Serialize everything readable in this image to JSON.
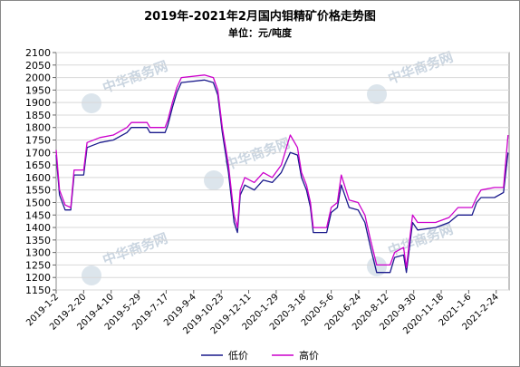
{
  "chart_data": {
    "type": "line",
    "title": "2019年-2021年2月国内钼精矿价格走势图",
    "subtitle": "单位：元/吨度",
    "watermark": "中华商务网",
    "x": [
      "2019-1-2",
      "2019-1-8",
      "2019-1-18",
      "2019-1-28",
      "2019-2-3",
      "2019-2-20",
      "2019-2-26",
      "2019-3-21",
      "2019-4-14",
      "2019-5-8",
      "2019-5-16",
      "2019-6-13",
      "2019-6-18",
      "2019-7-15",
      "2019-7-20",
      "2019-7-28",
      "2019-8-5",
      "2019-8-13",
      "2019-9-23",
      "2019-10-9",
      "2019-10-17",
      "2019-10-25",
      "2019-11-5",
      "2019-11-15",
      "2019-11-21",
      "2019-11-26",
      "2019-12-4",
      "2019-12-21",
      "2020-1-6",
      "2020-1-22",
      "2020-2-7",
      "2020-2-23",
      "2020-3-7",
      "2020-3-14",
      "2020-3-23",
      "2020-3-30",
      "2020-4-4",
      "2020-4-28",
      "2020-5-6",
      "2020-5-17",
      "2020-5-24",
      "2020-6-7",
      "2020-6-23",
      "2020-7-5",
      "2020-7-15",
      "2020-7-26",
      "2020-8-19",
      "2020-8-27",
      "2020-9-12",
      "2020-9-17",
      "2020-9-28",
      "2020-10-7",
      "2020-11-8",
      "2020-12-2",
      "2020-12-18",
      "2021-1-12",
      "2021-1-20",
      "2021-1-28",
      "2021-2-21",
      "2021-3-9",
      "2021-3-17"
    ],
    "xlim": [
      "2019-1-2",
      "2021-3-19"
    ],
    "xticks": [
      "2019-1-2",
      "2019-2-20",
      "2019-4-10",
      "2019-5-29",
      "2019-7-17",
      "2019-9-4",
      "2019-10-23",
      "2019-12-11",
      "2020-1-29",
      "2020-3-18",
      "2020-5-6",
      "2020-6-24",
      "2020-8-12",
      "2020-9-30",
      "2020-11-18",
      "2021-1-6",
      "2021-2-24"
    ],
    "ylim": [
      1150,
      2100
    ],
    "yticks": [
      1150,
      1200,
      1250,
      1300,
      1350,
      1400,
      1450,
      1500,
      1550,
      1600,
      1650,
      1700,
      1750,
      1800,
      1850,
      1900,
      1950,
      2000,
      2050,
      2100
    ],
    "grid": true,
    "series": [
      {
        "name": "低价",
        "color": "#1a1a8c",
        "values": [
          1690,
          1530,
          1470,
          1470,
          1610,
          1610,
          1720,
          1740,
          1750,
          1780,
          1800,
          1800,
          1780,
          1780,
          1810,
          1880,
          1940,
          1980,
          1990,
          1980,
          1930,
          1780,
          1620,
          1420,
          1380,
          1530,
          1570,
          1550,
          1590,
          1580,
          1620,
          1700,
          1690,
          1600,
          1550,
          1480,
          1380,
          1380,
          1460,
          1480,
          1570,
          1480,
          1470,
          1420,
          1320,
          1220,
          1220,
          1280,
          1290,
          1220,
          1420,
          1390,
          1400,
          1420,
          1450,
          1450,
          1500,
          1520,
          1520,
          1540,
          1700
        ]
      },
      {
        "name": "高价",
        "color": "#cc00cc",
        "values": [
          1710,
          1550,
          1490,
          1480,
          1630,
          1630,
          1740,
          1760,
          1770,
          1800,
          1820,
          1820,
          1800,
          1800,
          1830,
          1900,
          1960,
          2000,
          2010,
          2000,
          1950,
          1800,
          1650,
          1450,
          1400,
          1550,
          1600,
          1580,
          1620,
          1600,
          1650,
          1770,
          1720,
          1620,
          1570,
          1500,
          1400,
          1400,
          1480,
          1500,
          1610,
          1510,
          1500,
          1450,
          1350,
          1250,
          1250,
          1300,
          1320,
          1240,
          1450,
          1420,
          1420,
          1440,
          1480,
          1480,
          1520,
          1550,
          1560,
          1560,
          1770
        ]
      }
    ],
    "legend": "bottom"
  }
}
